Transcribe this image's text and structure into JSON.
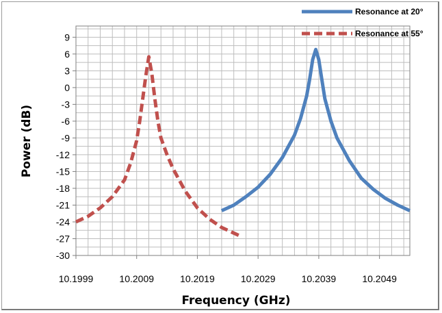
{
  "chart_data": {
    "type": "line",
    "title": "",
    "xlabel": "Frequency (GHz)",
    "ylabel": "Power (dB)",
    "xlim": [
      10.1999,
      10.2054
    ],
    "ylim": [
      -30,
      11
    ],
    "x_ticks": [
      10.1999,
      10.2009,
      10.2019,
      10.2029,
      10.2039,
      10.2049
    ],
    "x_tick_labels": [
      "10.1999",
      "10.2009",
      "10.2019",
      "10.2029",
      "10.2039",
      "10.2049"
    ],
    "y_ticks": [
      -30,
      -27,
      -24,
      -21,
      -18,
      -15,
      -12,
      -9,
      -6,
      -3,
      0,
      3,
      6,
      9
    ],
    "y_tick_labels": [
      "-30",
      "-27",
      "-24",
      "-21",
      "-18",
      "-15",
      "-12",
      "-9",
      "-6",
      "-3",
      "0",
      "3",
      "6",
      "9"
    ],
    "grid": true,
    "legend_position": "top-right",
    "series": [
      {
        "name": "Resonance at 20°",
        "color": "#4f81bd",
        "style": "solid",
        "x": [
          10.2023,
          10.2025,
          10.2027,
          10.2029,
          10.2031,
          10.2033,
          10.2035,
          10.2036,
          10.2037,
          10.20375,
          10.2038,
          10.20385,
          10.2039,
          10.20395,
          10.204,
          10.2041,
          10.2042,
          10.2044,
          10.2046,
          10.2048,
          10.205,
          10.2052,
          10.2054
        ],
        "y": [
          -22,
          -21,
          -19.5,
          -17.8,
          -15.5,
          -12.5,
          -8.5,
          -5.5,
          -1.5,
          1.5,
          5,
          6.8,
          5,
          1.5,
          -2,
          -6,
          -9,
          -13,
          -16.2,
          -18.2,
          -19.8,
          -21,
          -22
        ]
      },
      {
        "name": "Resonance at 55°",
        "color": "#c0504d",
        "style": "dashed",
        "x": [
          10.1999,
          10.2001,
          10.2003,
          10.2005,
          10.2007,
          10.2008,
          10.2009,
          10.20095,
          10.201,
          10.20105,
          10.2011,
          10.20115,
          10.2012,
          10.20125,
          10.2013,
          10.2014,
          10.2015,
          10.2017,
          10.2019,
          10.2021,
          10.2023,
          10.2025,
          10.2026
        ],
        "y": [
          -24,
          -23,
          -21.5,
          -19.5,
          -16.5,
          -13.5,
          -9.5,
          -6,
          -2,
          2,
          5.5,
          2.5,
          -2,
          -6,
          -9,
          -12,
          -14.5,
          -18.5,
          -21.5,
          -23.5,
          -25,
          -26,
          -26.5
        ]
      }
    ]
  }
}
